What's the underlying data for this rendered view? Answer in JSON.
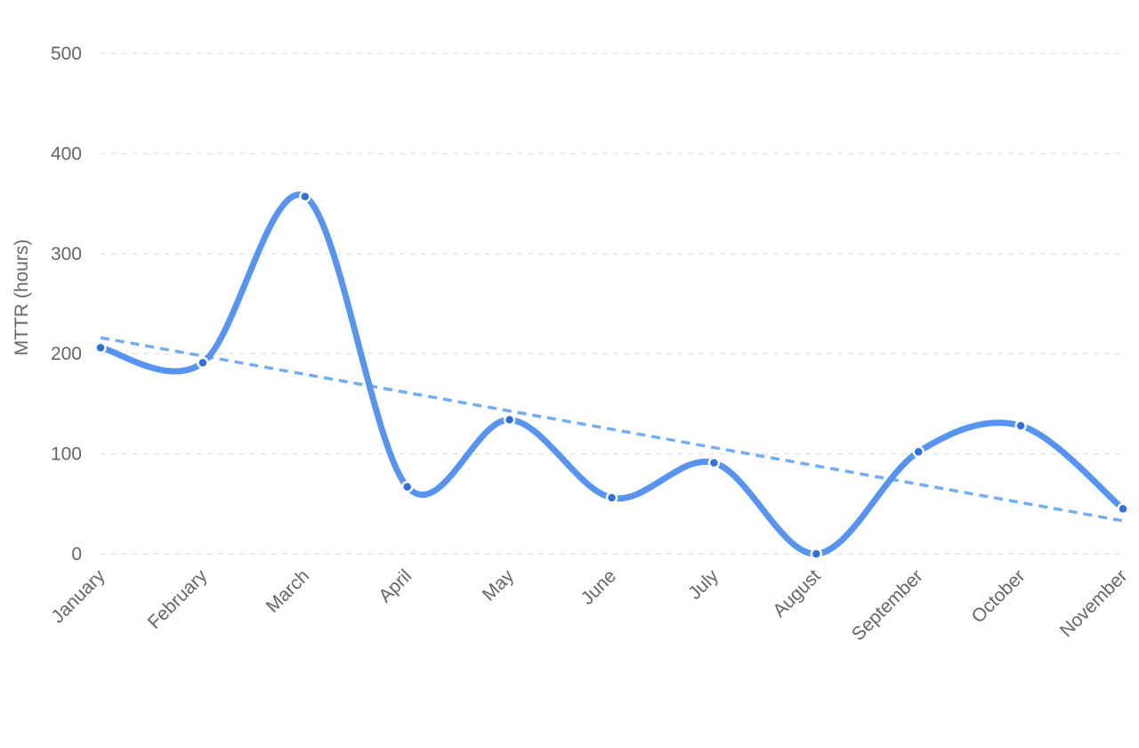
{
  "chart_data": {
    "type": "line",
    "categories": [
      "January",
      "February",
      "March",
      "April",
      "May",
      "June",
      "July",
      "August",
      "September",
      "October",
      "November"
    ],
    "series": [
      {
        "values": [
          206,
          191,
          357,
          67,
          134,
          56,
          91,
          0,
          102,
          128,
          45
        ],
        "smooth": true,
        "color": "#5794f2"
      }
    ],
    "trendline": {
      "start": 216,
      "end": 33,
      "style": "dashed",
      "color": "#73adf5"
    },
    "title": "",
    "xlabel": "",
    "ylabel": "MTTR (hours)",
    "ylim": [
      0,
      500
    ],
    "yticks": [
      "0",
      "100",
      "200",
      "300",
      "400",
      "500"
    ],
    "grid": true,
    "legend": "none"
  }
}
